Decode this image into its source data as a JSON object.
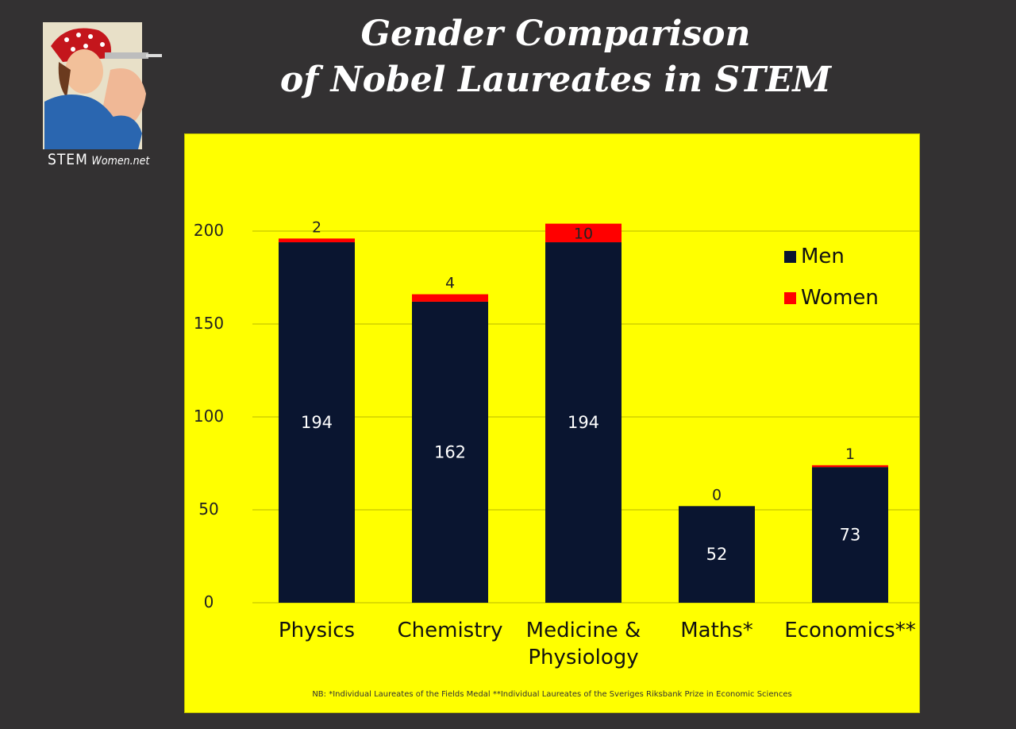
{
  "logo": {
    "text_main": "STEM",
    "text_sub": "Women.net"
  },
  "chart_data": {
    "type": "bar",
    "stacked": true,
    "title_lines": [
      "Gender Comparison",
      "of Nobel Laureates in STEM"
    ],
    "categories": [
      [
        "Physics"
      ],
      [
        "Chemistry"
      ],
      [
        "Medicine &",
        "Physiology"
      ],
      [
        "Maths*"
      ],
      [
        "Economics**"
      ]
    ],
    "series": [
      {
        "name": "Men",
        "values": [
          194,
          162,
          194,
          52,
          73
        ],
        "color": "#0a1530"
      },
      {
        "name": "Women",
        "values": [
          2,
          4,
          10,
          0,
          1
        ],
        "color": "#ff0000"
      }
    ],
    "yticks": [
      "0",
      "50",
      "100",
      "150",
      "200"
    ],
    "ylim": [
      0,
      200
    ],
    "grid": true,
    "legend_position": "top-right",
    "footnote": "NB: *Individual Laureates of the Fields Medal  **Individual Laureates of the Sveriges Riksbank Prize in Economic Sciences"
  }
}
